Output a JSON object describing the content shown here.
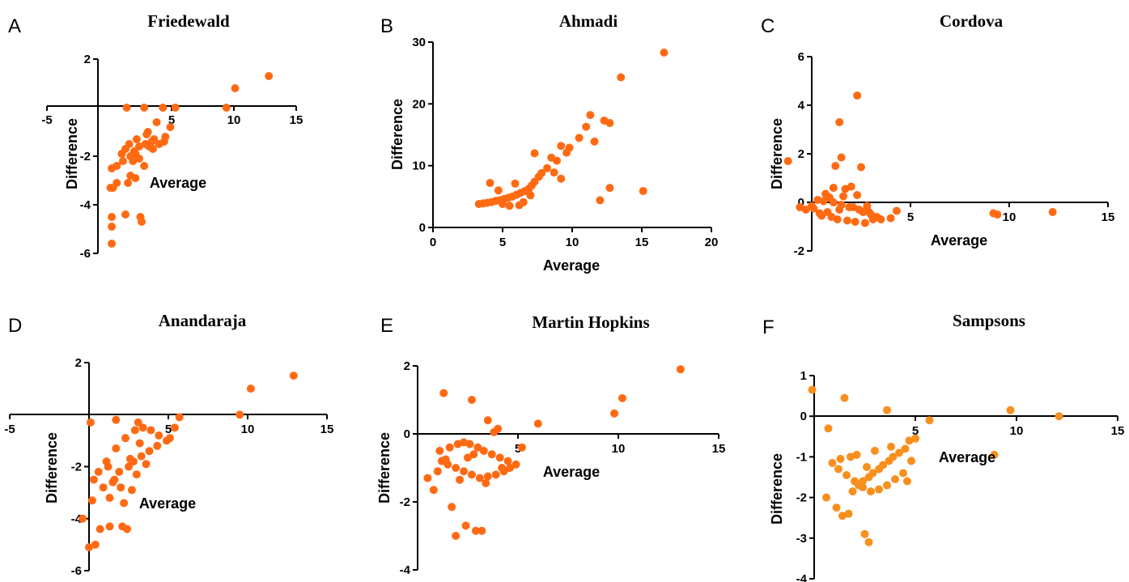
{
  "chart_data": [
    {
      "type": "scatter",
      "panel": "A",
      "title": "Friedewald",
      "xlabel": "Average",
      "ylabel": "Difference",
      "xlim": [
        -5,
        15
      ],
      "ylim": [
        -6,
        2
      ],
      "xticks": [
        -5,
        5,
        10,
        15
      ],
      "yticks": [
        -6,
        -4,
        -2,
        2
      ],
      "color": "#FF6A13",
      "x": [
        1.4,
        2.8,
        4.3,
        5.3,
        9.4,
        10.1,
        12.8,
        0.2,
        0.2,
        0.2,
        1.3,
        0.1,
        0.3,
        0.6,
        1.5,
        2.1,
        1.7,
        0.2,
        0.6,
        1.1,
        1.9,
        2.4,
        2.1,
        2.0,
        1.3,
        2.4,
        2.9,
        3.4,
        3.6,
        4.5,
        4.9,
        3.8,
        3.1,
        2.2,
        1.6,
        1.0,
        2.5,
        2.6,
        3.2,
        3.5,
        4.0,
        4.4,
        2.8,
        1.7,
        3.0
      ],
      "y": [
        0.0,
        0.0,
        0.0,
        0.0,
        0.0,
        0.8,
        1.3,
        -4.5,
        -4.9,
        -5.6,
        -4.4,
        -3.3,
        -3.3,
        -3.1,
        -3.1,
        -2.9,
        -2.8,
        -2.5,
        -2.4,
        -2.2,
        -2.2,
        -2.1,
        -1.9,
        -1.8,
        -1.7,
        -1.6,
        -1.5,
        -1.4,
        -1.3,
        -1.2,
        -0.8,
        -0.6,
        -1.0,
        -1.3,
        -1.5,
        -1.9,
        -4.5,
        -4.7,
        -1.6,
        -1.7,
        -1.5,
        -1.4,
        -2.4,
        -2.0,
        -1.1
      ]
    },
    {
      "type": "scatter",
      "panel": "B",
      "title": "Ahmadi",
      "xlabel": "Average",
      "ylabel": "Difference",
      "xlim": [
        0,
        20
      ],
      "ylim": [
        0,
        30
      ],
      "xticks": [
        0,
        5,
        10,
        15,
        20
      ],
      "yticks": [
        0,
        10,
        20,
        30
      ],
      "color": "#FF6A13",
      "x": [
        16.6,
        13.5,
        11.3,
        12.3,
        12.7,
        11.0,
        11.6,
        10.5,
        9.8,
        9.2,
        9.6,
        8.9,
        8.5,
        8.2,
        7.8,
        7.6,
        7.3,
        7.1,
        6.9,
        6.6,
        6.3,
        6.0,
        5.7,
        5.4,
        5.1,
        4.8,
        4.5,
        4.2,
        3.9,
        3.6,
        3.3,
        4.1,
        4.7,
        5.9,
        6.5,
        7.0,
        6.2,
        5.5,
        5.0,
        8.7,
        9.2,
        12.7,
        12.0,
        15.1,
        7.3
      ],
      "y": [
        28.3,
        24.3,
        18.2,
        17.3,
        16.9,
        16.3,
        13.9,
        14.5,
        12.9,
        13.2,
        12.1,
        10.8,
        11.3,
        9.6,
        8.8,
        8.2,
        7.4,
        6.8,
        6.3,
        5.9,
        5.6,
        5.3,
        5.0,
        4.8,
        4.6,
        4.4,
        4.3,
        4.1,
        4.0,
        3.9,
        3.8,
        7.2,
        6.0,
        7.1,
        4.1,
        5.2,
        3.6,
        3.5,
        3.8,
        8.9,
        7.9,
        6.4,
        4.4,
        5.9,
        12.0
      ]
    },
    {
      "type": "scatter",
      "panel": "C",
      "title": "Cordova",
      "xlabel": "Average",
      "ylabel": "Difference",
      "xlim": [
        0,
        15
      ],
      "ylim": [
        -2,
        6
      ],
      "xticks": [
        5,
        10,
        15
      ],
      "yticks": [
        -2,
        0,
        2,
        4,
        6
      ],
      "color": "#FF6A13",
      "x": [
        -1.2,
        1.4,
        1.5,
        1.2,
        1.1,
        2.3,
        2.5,
        2.0,
        1.7,
        0.7,
        0.3,
        -0.6,
        -0.3,
        0.1,
        0.8,
        0.5,
        1.0,
        1.3,
        1.8,
        2.2,
        2.7,
        3.1,
        3.3,
        2.9,
        2.4,
        1.9,
        1.5,
        1.1,
        0.6,
        0.0,
        3.5,
        3.0,
        2.6,
        2.1,
        0.4,
        4.0,
        4.3,
        9.2,
        9.4,
        12.2,
        1.6,
        2.8,
        0.9,
        1.4,
        2.3
      ],
      "y": [
        1.7,
        3.3,
        1.85,
        1.5,
        0.6,
        4.4,
        1.45,
        0.65,
        0.55,
        0.35,
        0.1,
        -0.2,
        -0.3,
        -0.25,
        -0.4,
        -0.55,
        -0.6,
        -0.7,
        -0.75,
        -0.8,
        -0.85,
        -0.7,
        -0.6,
        -0.4,
        -0.3,
        -0.2,
        -0.1,
        0.0,
        0.05,
        -0.15,
        -0.7,
        -0.5,
        -0.4,
        -0.2,
        -0.45,
        -0.65,
        -0.35,
        -0.45,
        -0.5,
        -0.4,
        0.25,
        -0.15,
        0.2,
        -0.3,
        0.3
      ]
    },
    {
      "type": "scatter",
      "panel": "D",
      "title": "Anandaraja",
      "xlabel": "Average",
      "ylabel": "Difference",
      "xlim": [
        -5,
        15
      ],
      "ylim": [
        -6,
        2
      ],
      "xticks": [
        -5,
        5,
        10,
        15
      ],
      "yticks": [
        -6,
        -4,
        -2,
        2
      ],
      "color": "#FF6A13",
      "x": [
        12.9,
        10.2,
        9.5,
        5.7,
        5.4,
        3.1,
        1.7,
        0.1,
        -0.4,
        0.0,
        0.4,
        0.7,
        1.3,
        2.1,
        2.4,
        2.2,
        1.3,
        0.2,
        0.9,
        1.6,
        1.9,
        2.5,
        2.8,
        3.3,
        3.8,
        4.3,
        4.9,
        5.1,
        4.4,
        3.9,
        3.4,
        2.9,
        2.3,
        1.7,
        1.1,
        0.6,
        1.5,
        2.0,
        3.0,
        3.6,
        2.6,
        1.2,
        0.3,
        2.7,
        3.2
      ],
      "y": [
        1.5,
        1.0,
        0.0,
        -0.1,
        -0.5,
        -0.3,
        -0.2,
        -0.3,
        -4.0,
        -5.1,
        -5.0,
        -4.4,
        -4.3,
        -4.3,
        -4.4,
        -3.4,
        -3.2,
        -3.3,
        -2.8,
        -2.5,
        -2.2,
        -2.0,
        -1.8,
        -1.6,
        -1.4,
        -1.2,
        -1.0,
        -0.9,
        -0.8,
        -0.6,
        -0.5,
        -0.6,
        -0.9,
        -1.3,
        -1.8,
        -2.2,
        -2.6,
        -2.8,
        -2.3,
        -1.9,
        -1.7,
        -2.0,
        -2.5,
        -2.9,
        -1.1
      ]
    },
    {
      "type": "scatter",
      "panel": "E",
      "title": "Martin Hopkins",
      "xlabel": "Average",
      "ylabel": "Difference",
      "xlim": [
        0,
        15
      ],
      "ylim": [
        -4,
        2
      ],
      "xticks": [
        5,
        10,
        15
      ],
      "yticks": [
        -4,
        -2,
        0,
        2
      ],
      "color": "#FF6A13",
      "x": [
        13.1,
        10.2,
        9.8,
        6.0,
        5.2,
        4.0,
        3.8,
        3.5,
        2.7,
        1.3,
        0.5,
        0.8,
        1.0,
        2.4,
        2.9,
        3.2,
        1.7,
        1.9,
        1.4,
        1.1,
        1.6,
        2.0,
        2.3,
        2.6,
        3.0,
        3.3,
        3.7,
        4.1,
        4.5,
        4.9,
        4.6,
        4.3,
        3.9,
        3.5,
        3.1,
        2.7,
        2.3,
        1.9,
        1.5,
        1.2,
        2.5,
        2.1,
        3.4,
        4.2,
        2.8
      ],
      "y": [
        1.9,
        1.05,
        0.6,
        0.3,
        -0.4,
        0.15,
        0.05,
        0.4,
        1.0,
        1.2,
        -1.3,
        -1.65,
        -1.1,
        -2.7,
        -2.85,
        -2.85,
        -2.15,
        -3.0,
        -0.75,
        -0.5,
        -0.4,
        -0.3,
        -0.25,
        -0.3,
        -0.4,
        -0.5,
        -0.6,
        -0.7,
        -0.8,
        -0.9,
        -1.0,
        -1.1,
        -1.2,
        -1.25,
        -1.3,
        -1.2,
        -1.1,
        -1.0,
        -0.9,
        -0.8,
        -0.7,
        -1.35,
        -1.45,
        -1.0,
        -0.6
      ]
    },
    {
      "type": "scatter",
      "panel": "F",
      "title": "Sampsons",
      "xlabel": "Average",
      "ylabel": "Difference",
      "xlim": [
        0,
        15
      ],
      "ylim": [
        -4,
        1
      ],
      "xticks": [
        5,
        10,
        15
      ],
      "yticks": [
        -4,
        -3,
        -2,
        -1,
        0,
        1
      ],
      "color": "#F7901E",
      "x": [
        -0.1,
        1.5,
        3.6,
        5.7,
        9.7,
        12.1,
        8.9,
        0.7,
        0.6,
        2.5,
        2.7,
        1.1,
        1.4,
        1.7,
        1.9,
        2.2,
        2.4,
        2.7,
        2.9,
        3.2,
        3.4,
        3.7,
        3.9,
        4.2,
        4.5,
        4.7,
        5.0,
        4.8,
        4.4,
        4.0,
        3.6,
        3.2,
        2.8,
        2.4,
        2.0,
        1.6,
        1.2,
        0.9,
        1.3,
        2.1,
        3.0,
        3.8,
        4.6,
        2.6,
        1.8
      ],
      "y": [
        0.65,
        0.45,
        0.15,
        -0.1,
        0.15,
        0.0,
        -0.95,
        -0.3,
        -2.0,
        -2.9,
        -3.1,
        -2.25,
        -2.45,
        -2.4,
        -1.85,
        -1.7,
        -1.6,
        -1.5,
        -1.4,
        -1.3,
        -1.2,
        -1.1,
        -1.0,
        -0.9,
        -0.8,
        -0.6,
        -0.55,
        -1.1,
        -1.4,
        -1.55,
        -1.7,
        -1.8,
        -1.85,
        -1.75,
        -1.6,
        -1.45,
        -1.3,
        -1.15,
        -1.05,
        -0.95,
        -0.85,
        -0.75,
        -1.6,
        -1.25,
        -1.0
      ]
    }
  ]
}
